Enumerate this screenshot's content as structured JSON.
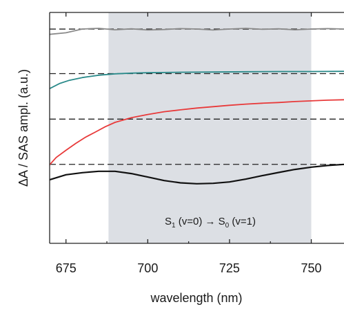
{
  "chart_data": {
    "type": "line",
    "xlabel": "wavelength (nm)",
    "ylabel": "ΔA / SAS ampl. (a.u.)",
    "xlim": [
      670,
      760
    ],
    "ylim": [
      0,
      1
    ],
    "x_ticks": [
      675,
      700,
      725,
      750
    ],
    "x_tick_labels": [
      "675",
      "700",
      "725",
      "750"
    ],
    "y_ticks": [],
    "grid": false,
    "legend": "none",
    "shaded_region": {
      "x": [
        688,
        750
      ],
      "color": "#dcdfe4"
    },
    "annotation": {
      "S1": "S",
      "sub1": "1",
      "mid": " (v=0) → S",
      "sub2": "0",
      "end": " (v=1)"
    },
    "baselines": [
      0.928,
      0.735,
      0.538,
      0.342
    ],
    "series": [
      {
        "color": "#8a8a8a",
        "x": [
          670,
          675,
          680,
          685,
          690,
          695,
          700,
          705,
          710,
          715,
          720,
          725,
          730,
          735,
          740,
          745,
          750,
          755,
          760
        ],
        "values": [
          0.905,
          0.912,
          0.928,
          0.931,
          0.925,
          0.929,
          0.924,
          0.926,
          0.93,
          0.928,
          0.924,
          0.928,
          0.931,
          0.927,
          0.929,
          0.925,
          0.928,
          0.93,
          0.928
        ]
      },
      {
        "color": "#2a8a8a",
        "x": [
          670,
          673,
          676,
          680,
          685,
          690,
          695,
          700,
          710,
          720,
          730,
          740,
          750,
          760
        ],
        "values": [
          0.67,
          0.692,
          0.706,
          0.718,
          0.728,
          0.734,
          0.737,
          0.739,
          0.741,
          0.742,
          0.743,
          0.744,
          0.744,
          0.745
        ]
      },
      {
        "color": "#e83a3a",
        "x": [
          670,
          672,
          675,
          678,
          681,
          684,
          687,
          690,
          695,
          700,
          705,
          710,
          715,
          720,
          725,
          730,
          735,
          740,
          745,
          750,
          755,
          760
        ],
        "values": [
          0.34,
          0.372,
          0.403,
          0.433,
          0.46,
          0.482,
          0.505,
          0.524,
          0.544,
          0.558,
          0.57,
          0.578,
          0.586,
          0.592,
          0.598,
          0.603,
          0.607,
          0.61,
          0.614,
          0.617,
          0.62,
          0.622
        ]
      },
      {
        "color": "#111111",
        "x": [
          670,
          675,
          680,
          685,
          690,
          695,
          700,
          705,
          710,
          715,
          720,
          725,
          730,
          735,
          740,
          745,
          750,
          755,
          760
        ],
        "values": [
          0.275,
          0.297,
          0.306,
          0.312,
          0.312,
          0.302,
          0.287,
          0.272,
          0.262,
          0.258,
          0.26,
          0.266,
          0.278,
          0.293,
          0.307,
          0.32,
          0.33,
          0.337,
          0.342
        ]
      }
    ]
  }
}
